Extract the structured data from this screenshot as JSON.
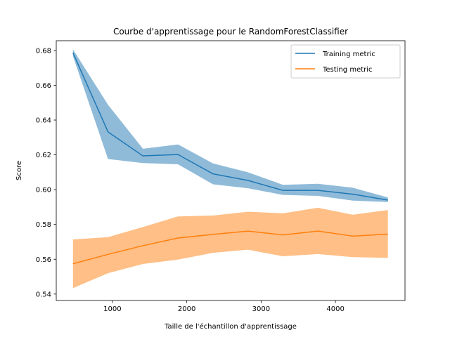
{
  "chart_data": {
    "type": "line",
    "title": "Courbe d'apprentissage pour le RandomForestClassifier",
    "xlabel": "Taille de l'échantillon d'apprentissage",
    "ylabel": "Score",
    "xlim": [
      245,
      4935
    ],
    "ylim": [
      0.5363,
      0.6856
    ],
    "x_ticks": [
      1000,
      2000,
      3000,
      4000
    ],
    "y_ticks": [
      0.54,
      0.56,
      0.58,
      0.6,
      0.62,
      0.64,
      0.66,
      0.68
    ],
    "y_tick_decimals": 2,
    "grid": false,
    "legend_position": "top-right",
    "x": [
      470,
      941,
      1411,
      1882,
      2352,
      2823,
      3293,
      3764,
      4234,
      4705
    ],
    "series": [
      {
        "name": "Training metric",
        "color": "#1f77b4",
        "band_color": "#1f77b4",
        "values": [
          0.6786,
          0.6332,
          0.6194,
          0.6202,
          0.6091,
          0.6053,
          0.5996,
          0.5996,
          0.5974,
          0.594
        ],
        "lower": [
          0.6767,
          0.6176,
          0.6153,
          0.6146,
          0.6031,
          0.6008,
          0.597,
          0.5964,
          0.5937,
          0.5929
        ],
        "upper": [
          0.6806,
          0.6488,
          0.6235,
          0.626,
          0.6151,
          0.61,
          0.6028,
          0.6034,
          0.6011,
          0.5955
        ]
      },
      {
        "name": "Testing metric",
        "color": "#ff7f0e",
        "band_color": "#ff7f0e",
        "values": [
          0.5574,
          0.5628,
          0.5678,
          0.5722,
          0.5743,
          0.5762,
          0.574,
          0.5762,
          0.5733,
          0.5745
        ],
        "lower": [
          0.5434,
          0.552,
          0.5573,
          0.5598,
          0.5637,
          0.5655,
          0.5617,
          0.563,
          0.5612,
          0.5608
        ],
        "upper": [
          0.5714,
          0.5727,
          0.5785,
          0.5846,
          0.5851,
          0.5873,
          0.5864,
          0.5896,
          0.5856,
          0.5883
        ]
      }
    ]
  }
}
